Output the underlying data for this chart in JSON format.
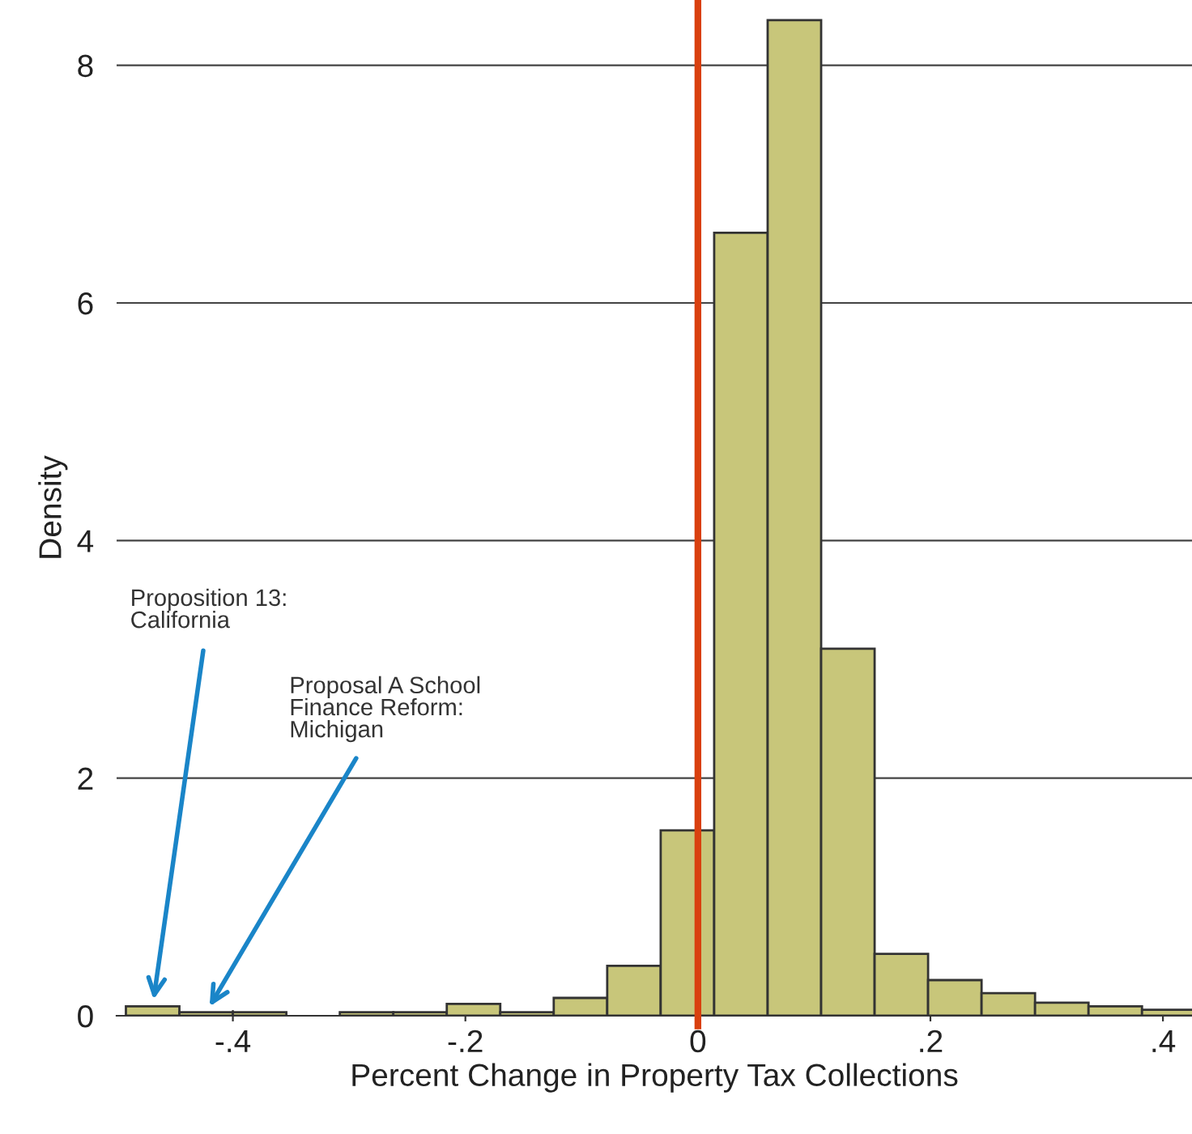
{
  "chart_data": {
    "type": "histogram",
    "xlabel": "Percent Change in Property Tax Collections",
    "ylabel": "Density",
    "bins": [
      -0.492,
      -0.446,
      -0.4,
      -0.354,
      -0.308,
      -0.262,
      -0.216,
      -0.17,
      -0.124,
      -0.078,
      -0.032,
      0.014,
      0.06,
      0.106,
      0.152,
      0.198,
      0.244,
      0.29,
      0.336,
      0.382,
      0.428
    ],
    "values": [
      0.08,
      0.03,
      0.03,
      0,
      0.03,
      0.03,
      0.1,
      0.03,
      0.15,
      0.42,
      1.56,
      6.59,
      8.38,
      3.09,
      0.52,
      0.3,
      0.19,
      0.11,
      0.08,
      0.05
    ],
    "color": "#c8c67a",
    "xlim": [
      -0.5,
      0.425
    ],
    "ylim": [
      0,
      8.55
    ],
    "xticks": [
      {
        "value": -0.4,
        "label": "-.4"
      },
      {
        "value": -0.2,
        "label": "-.2"
      },
      0,
      {
        "value": 0.2,
        "label": ".2"
      },
      {
        "value": 0.4,
        "label": ".4"
      }
    ],
    "yticks": [
      0,
      2,
      4,
      6,
      8
    ],
    "grid": "y",
    "ref_lines": [
      {
        "axis": "x",
        "value": 0,
        "color": "#d9400f"
      }
    ],
    "annotations": [
      {
        "text": "Proposition 13:\nCalifornia",
        "x": -0.469,
        "y": 0.08
      },
      {
        "text": "Proposal A School\nFinance Reform:\nMichigan",
        "x": -0.423,
        "y": 0.03
      }
    ]
  }
}
